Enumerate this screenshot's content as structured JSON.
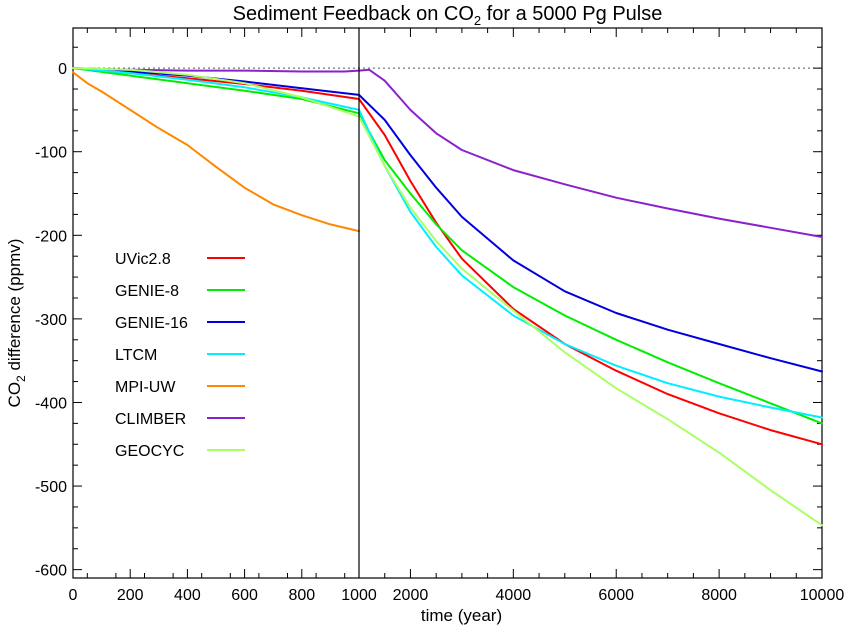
{
  "chart_data": {
    "type": "line",
    "title_main": "Sediment Feedback on CO",
    "title_sub": "2",
    "title_tail": " for a 5000 Pg Pulse",
    "ylabel_main": "CO",
    "ylabel_sub": "2",
    "ylabel_tail": " difference (ppmv)",
    "xlabel": "time (year)",
    "ylim": [
      -610,
      48
    ],
    "x_axis": "split: linear 0–1000 in left panel, linear 1000–10000 in right panel",
    "x_ticks_left": [
      0,
      200,
      400,
      600,
      800
    ],
    "x_ticks_right": [
      1000,
      2000,
      4000,
      6000,
      8000,
      10000
    ],
    "x_tick_labels": [
      "0",
      "200",
      "400",
      "600",
      "800",
      "1000",
      "2000",
      "4000",
      "6000",
      "8000",
      "10000"
    ],
    "y_ticks": [
      0,
      -100,
      -200,
      -300,
      -400,
      -500,
      -600
    ],
    "y_tick_labels": [
      "0",
      "-100",
      "-200",
      "-300",
      "-400",
      "-500",
      "-600"
    ],
    "zero_line": "dotted",
    "legend_position": "left-middle",
    "series": [
      {
        "name": "UVic2.8",
        "color": "#ff0000",
        "points": [
          [
            0,
            0
          ],
          [
            200,
            -6
          ],
          [
            400,
            -12
          ],
          [
            600,
            -19
          ],
          [
            800,
            -27
          ],
          [
            1000,
            -37
          ],
          [
            1500,
            -80
          ],
          [
            2000,
            -135
          ],
          [
            2500,
            -185
          ],
          [
            3000,
            -228
          ],
          [
            4000,
            -288
          ],
          [
            5000,
            -330
          ],
          [
            6000,
            -362
          ],
          [
            7000,
            -390
          ],
          [
            8000,
            -413
          ],
          [
            9000,
            -433
          ],
          [
            10000,
            -450
          ]
        ]
      },
      {
        "name": "GENIE-8",
        "color": "#00ee00",
        "points": [
          [
            0,
            0
          ],
          [
            200,
            -9
          ],
          [
            400,
            -18
          ],
          [
            600,
            -27
          ],
          [
            800,
            -37
          ],
          [
            1000,
            -54
          ],
          [
            1500,
            -110
          ],
          [
            2000,
            -150
          ],
          [
            2500,
            -187
          ],
          [
            3000,
            -218
          ],
          [
            4000,
            -262
          ],
          [
            5000,
            -296
          ],
          [
            6000,
            -325
          ],
          [
            7000,
            -352
          ],
          [
            8000,
            -377
          ],
          [
            9000,
            -401
          ],
          [
            10000,
            -425
          ]
        ]
      },
      {
        "name": "GENIE-16",
        "color": "#0000dd",
        "points": [
          [
            0,
            0
          ],
          [
            200,
            -4
          ],
          [
            400,
            -9
          ],
          [
            600,
            -16
          ],
          [
            800,
            -24
          ],
          [
            1000,
            -32
          ],
          [
            1500,
            -62
          ],
          [
            2000,
            -104
          ],
          [
            2500,
            -143
          ],
          [
            3000,
            -178
          ],
          [
            4000,
            -230
          ],
          [
            5000,
            -267
          ],
          [
            6000,
            -293
          ],
          [
            7000,
            -313
          ],
          [
            8000,
            -330
          ],
          [
            9000,
            -347
          ],
          [
            10000,
            -363
          ]
        ]
      },
      {
        "name": "LTCM",
        "color": "#00eeff",
        "points": [
          [
            0,
            0
          ],
          [
            200,
            -6
          ],
          [
            400,
            -14
          ],
          [
            600,
            -23
          ],
          [
            800,
            -35
          ],
          [
            1000,
            -50
          ],
          [
            1500,
            -117
          ],
          [
            2000,
            -172
          ],
          [
            2500,
            -214
          ],
          [
            3000,
            -248
          ],
          [
            4000,
            -296
          ],
          [
            5000,
            -330
          ],
          [
            6000,
            -356
          ],
          [
            7000,
            -377
          ],
          [
            8000,
            -393
          ],
          [
            9000,
            -406
          ],
          [
            10000,
            -418
          ]
        ]
      },
      {
        "name": "MPI-UW",
        "color": "#ff8800",
        "points": [
          [
            0,
            -5
          ],
          [
            50,
            -18
          ],
          [
            100,
            -28
          ],
          [
            200,
            -50
          ],
          [
            300,
            -72
          ],
          [
            400,
            -92
          ],
          [
            500,
            -118
          ],
          [
            600,
            -143
          ],
          [
            700,
            -163
          ],
          [
            800,
            -176
          ],
          [
            900,
            -187
          ],
          [
            1000,
            -195
          ]
        ]
      },
      {
        "name": "CLIMBER",
        "color": "#8a22cc",
        "points": [
          [
            0,
            0
          ],
          [
            200,
            -2
          ],
          [
            400,
            -3
          ],
          [
            600,
            -3
          ],
          [
            800,
            -4
          ],
          [
            950,
            -4
          ],
          [
            1000,
            -3
          ],
          [
            1200,
            -2
          ],
          [
            1500,
            -15
          ],
          [
            2000,
            -50
          ],
          [
            2500,
            -78
          ],
          [
            3000,
            -98
          ],
          [
            4000,
            -122
          ],
          [
            5000,
            -139
          ],
          [
            6000,
            -155
          ],
          [
            7000,
            -168
          ],
          [
            8000,
            -180
          ],
          [
            9000,
            -191
          ],
          [
            10000,
            -202
          ]
        ]
      },
      {
        "name": "GEOCYC",
        "color": "#aaff66",
        "points": [
          [
            0,
            0
          ],
          [
            200,
            -2
          ],
          [
            400,
            -8
          ],
          [
            600,
            -18
          ],
          [
            800,
            -35
          ],
          [
            1000,
            -58
          ],
          [
            1500,
            -117
          ],
          [
            2000,
            -167
          ],
          [
            2500,
            -207
          ],
          [
            3000,
            -240
          ],
          [
            4000,
            -290
          ],
          [
            5000,
            -340
          ],
          [
            6000,
            -383
          ],
          [
            7000,
            -420
          ],
          [
            8000,
            -460
          ],
          [
            9000,
            -505
          ],
          [
            10000,
            -547
          ]
        ]
      }
    ]
  }
}
